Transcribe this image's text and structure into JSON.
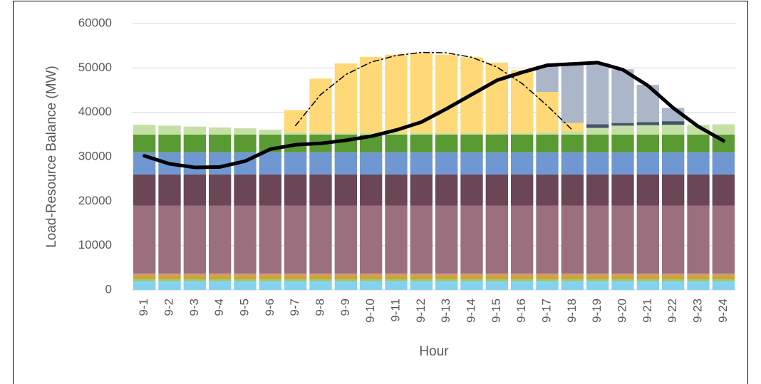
{
  "chart_data": {
    "type": "bar",
    "stacked": true,
    "x_label": "Hour",
    "y_label": "Load-Resource Balance (MW)",
    "categories": [
      "9-1",
      "9-2",
      "9-3",
      "9-4",
      "9-5",
      "9-6",
      "9-7",
      "9-8",
      "9-9",
      "9-10",
      "9-11",
      "9-12",
      "9-13",
      "9-14",
      "9-15",
      "9-16",
      "9-17",
      "9-18",
      "9-19",
      "9-20",
      "9-21",
      "9-22",
      "9-23",
      "9-24"
    ],
    "ylim": [
      0,
      60000
    ],
    "yticks": [
      0,
      10000,
      20000,
      30000,
      40000,
      50000,
      60000
    ],
    "grid": true,
    "series": [
      {
        "type": "bar",
        "color": "#86d2ee",
        "values": [
          2000,
          2000,
          2000,
          2000,
          2000,
          2000,
          2000,
          2000,
          2000,
          2000,
          2000,
          2000,
          2000,
          2000,
          2000,
          2000,
          2000,
          2000,
          2000,
          2000,
          2000,
          2000,
          2000,
          2000
        ]
      },
      {
        "type": "bar",
        "color": "#8fcf6a",
        "values": [
          400,
          400,
          400,
          400,
          400,
          400,
          400,
          400,
          400,
          400,
          400,
          400,
          400,
          400,
          400,
          400,
          400,
          400,
          400,
          400,
          400,
          400,
          400,
          400
        ]
      },
      {
        "type": "bar",
        "color": "#d9a030",
        "values": [
          800,
          800,
          800,
          800,
          800,
          800,
          800,
          800,
          800,
          800,
          800,
          800,
          800,
          800,
          800,
          800,
          800,
          800,
          800,
          800,
          800,
          800,
          800,
          800
        ]
      },
      {
        "type": "bar",
        "color": "#c99e74",
        "values": [
          500,
          500,
          500,
          500,
          500,
          500,
          500,
          500,
          500,
          500,
          500,
          500,
          500,
          500,
          500,
          500,
          500,
          500,
          500,
          500,
          500,
          500,
          500,
          500
        ]
      },
      {
        "type": "bar",
        "color": "#9c6f7e",
        "values": [
          15300,
          15300,
          15300,
          15300,
          15300,
          15300,
          15300,
          15300,
          15300,
          15300,
          15300,
          15300,
          15300,
          15300,
          15300,
          15300,
          15300,
          15300,
          15300,
          15300,
          15300,
          15300,
          15300,
          15300
        ]
      },
      {
        "type": "bar",
        "color": "#6b4654",
        "values": [
          7000,
          7000,
          7000,
          7000,
          7000,
          7000,
          7000,
          7000,
          7000,
          7000,
          7000,
          7000,
          7000,
          7000,
          7000,
          7000,
          7000,
          7000,
          7000,
          7000,
          7000,
          7000,
          7000,
          7000
        ]
      },
      {
        "type": "bar",
        "color": "#6f98d2",
        "values": [
          5000,
          5000,
          5000,
          5000,
          5000,
          5000,
          5000,
          5000,
          5000,
          5000,
          5000,
          5000,
          5000,
          5000,
          5000,
          5000,
          5000,
          5000,
          5000,
          5000,
          5000,
          5000,
          5000,
          5000
        ]
      },
      {
        "type": "bar",
        "color": "#5a9a32",
        "values": [
          4000,
          4000,
          4000,
          4000,
          4000,
          4000,
          4000,
          4000,
          4000,
          4000,
          4000,
          4000,
          4000,
          4000,
          4000,
          4000,
          4000,
          4000,
          4000,
          4000,
          4000,
          4000,
          4000,
          4000
        ]
      },
      {
        "type": "bar",
        "color": "#c5e0a4",
        "values": [
          2200,
          2000,
          1800,
          1600,
          1400,
          1100,
          500,
          400,
          300,
          300,
          300,
          300,
          300,
          300,
          300,
          300,
          500,
          700,
          1500,
          2000,
          2100,
          2200,
          2200,
          2300
        ]
      },
      {
        "type": "bar",
        "color": "#ffd978",
        "values": [
          0,
          0,
          0,
          0,
          0,
          0,
          5000,
          12200,
          15700,
          17200,
          17700,
          18000,
          17700,
          17100,
          15900,
          14200,
          9100,
          1900,
          0,
          0,
          0,
          0,
          0,
          0
        ]
      },
      {
        "type": "bar",
        "color": "#44546a",
        "values": [
          0,
          0,
          0,
          0,
          0,
          0,
          0,
          0,
          0,
          0,
          0,
          0,
          0,
          0,
          0,
          0,
          0,
          0,
          800,
          600,
          700,
          800,
          0,
          0
        ]
      },
      {
        "type": "bar",
        "color": "#acb6c9",
        "values": [
          0,
          0,
          0,
          0,
          0,
          0,
          0,
          0,
          0,
          0,
          0,
          0,
          0,
          0,
          0,
          0,
          5900,
          13400,
          13800,
          12100,
          8400,
          3000,
          0,
          0
        ]
      },
      {
        "type": "line",
        "color": "#000000",
        "width": 5,
        "values": [
          30200,
          28400,
          27600,
          27700,
          29000,
          31700,
          32700,
          33000,
          33700,
          34600,
          36000,
          37800,
          40800,
          44000,
          47200,
          49000,
          50600,
          50900,
          51200,
          49600,
          46000,
          41000,
          36800,
          33600
        ]
      },
      {
        "type": "line",
        "color": "#000000",
        "width": 1.5,
        "dash": "dash-dot",
        "values": [
          null,
          null,
          null,
          null,
          null,
          null,
          37000,
          44000,
          48500,
          51300,
          52800,
          53500,
          53400,
          52400,
          50200,
          46500,
          41500,
          36000,
          null,
          null,
          null,
          null,
          null,
          null
        ]
      }
    ]
  }
}
